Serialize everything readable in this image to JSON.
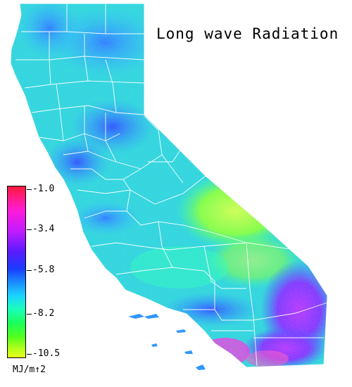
{
  "title": "Long wave Radiation",
  "legend": {
    "ticks": [
      "-1.0",
      "-3.4",
      "-5.8",
      "-8.2",
      "-10.5"
    ],
    "unit": "MJ/m↑2",
    "scale_min": -10.5,
    "scale_max": -1.0,
    "colors": {
      "high": "#ff1b3c",
      "upper": "#c21bff",
      "mid": "#1b3cff",
      "lower": "#1bd4ff",
      "low_mid": "#1bff5a",
      "low": "#e8ff1b"
    }
  },
  "map": {
    "region": "California",
    "boundary_color": "#ffffff"
  }
}
